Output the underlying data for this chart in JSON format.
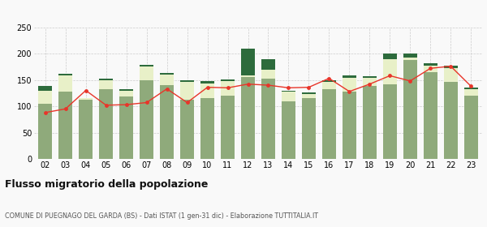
{
  "years": [
    "02",
    "03",
    "04",
    "05",
    "06",
    "07",
    "08",
    "09",
    "10",
    "11",
    "12",
    "13",
    "14",
    "15",
    "16",
    "17",
    "18",
    "19",
    "20",
    "21",
    "22",
    "23"
  ],
  "iscritti_altri_comuni": [
    105,
    128,
    113,
    133,
    118,
    150,
    140,
    112,
    115,
    120,
    155,
    152,
    110,
    115,
    132,
    128,
    138,
    142,
    188,
    165,
    147,
    120
  ],
  "iscritti_estero": [
    25,
    30,
    2,
    17,
    12,
    25,
    20,
    35,
    28,
    28,
    3,
    18,
    18,
    8,
    14,
    26,
    16,
    48,
    4,
    12,
    25,
    12
  ],
  "iscritti_altri": [
    8,
    3,
    0,
    2,
    2,
    3,
    3,
    2,
    5,
    3,
    52,
    20,
    2,
    3,
    4,
    5,
    3,
    10,
    8,
    5,
    5,
    3
  ],
  "cancellati": [
    88,
    95,
    130,
    102,
    103,
    107,
    133,
    107,
    136,
    135,
    142,
    140,
    135,
    136,
    153,
    128,
    142,
    158,
    148,
    172,
    176,
    138
  ],
  "color_altri_comuni": "#8faa7b",
  "color_estero": "#e8f0c8",
  "color_altri": "#2d6b3c",
  "color_cancellati": "#e8352a",
  "ylim": [
    0,
    250
  ],
  "yticks": [
    0,
    50,
    100,
    150,
    200,
    250
  ],
  "title": "Flusso migratorio della popolazione",
  "subtitle": "COMUNE DI PUEGNAGO DEL GARDA (BS) - Dati ISTAT (1 gen-31 dic) - Elaborazione TUTTITALIA.IT",
  "bg_color": "#f9f9f9",
  "grid_color": "#cccccc"
}
